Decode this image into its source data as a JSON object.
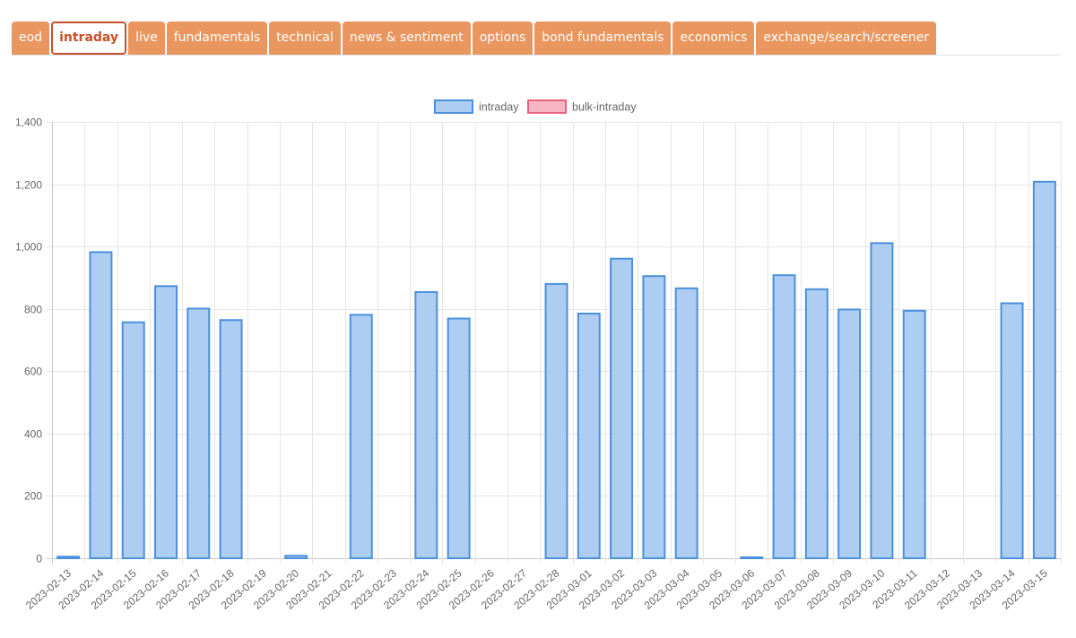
{
  "tabs": [
    {
      "label": "eod",
      "active": false
    },
    {
      "label": "intraday",
      "active": true
    },
    {
      "label": "live",
      "active": false
    },
    {
      "label": "fundamentals",
      "active": false
    },
    {
      "label": "technical",
      "active": false
    },
    {
      "label": "news & sentiment",
      "active": false
    },
    {
      "label": "options",
      "active": false
    },
    {
      "label": "bond fundamentals",
      "active": false
    },
    {
      "label": "economics",
      "active": false
    },
    {
      "label": "exchange/search/screener",
      "active": false
    }
  ],
  "colors": {
    "tab_bg": "#e9965f",
    "tab_active": "#c9502a",
    "intraday_fill": "#aecdf3",
    "intraday_stroke": "#4a90dc",
    "bulk_fill": "#f7b6c5",
    "bulk_stroke": "#e8637e"
  },
  "chart_data": {
    "type": "bar",
    "title": "",
    "xlabel": "",
    "ylabel": "",
    "ylim": [
      0,
      1400
    ],
    "yticks": [
      0,
      200,
      400,
      600,
      800,
      1000,
      1200,
      1400
    ],
    "ytick_labels": [
      "0",
      "200",
      "400",
      "600",
      "800",
      "1,000",
      "1,200",
      "1,400"
    ],
    "grid": true,
    "legend_position": "top",
    "categories": [
      "2023-02-13",
      "2023-02-14",
      "2023-02-15",
      "2023-02-16",
      "2023-02-17",
      "2023-02-18",
      "2023-02-19",
      "2023-02-20",
      "2023-02-21",
      "2023-02-22",
      "2023-02-23",
      "2023-02-24",
      "2023-02-25",
      "2023-02-26",
      "2023-02-27",
      "2023-02-28",
      "2023-03-01",
      "2023-03-02",
      "2023-03-03",
      "2023-03-04",
      "2023-03-05",
      "2023-03-06",
      "2023-03-07",
      "2023-03-08",
      "2023-03-09",
      "2023-03-10",
      "2023-03-11",
      "2023-03-12",
      "2023-03-13",
      "2023-03-14",
      "2023-03-15"
    ],
    "series": [
      {
        "name": "intraday",
        "values": [
          5,
          982,
          757,
          873,
          801,
          764,
          0,
          8,
          0,
          781,
          0,
          854,
          769,
          0,
          0,
          880,
          785,
          961,
          905,
          866,
          0,
          3,
          908,
          863,
          798,
          1011,
          794,
          0,
          0,
          818,
          1208
        ]
      },
      {
        "name": "bulk-intraday",
        "values": [
          0,
          0,
          0,
          0,
          0,
          0,
          0,
          0,
          0,
          0,
          0,
          0,
          0,
          0,
          0,
          0,
          0,
          0,
          0,
          0,
          0,
          0,
          0,
          0,
          0,
          0,
          0,
          0,
          0,
          0,
          0
        ]
      }
    ]
  }
}
